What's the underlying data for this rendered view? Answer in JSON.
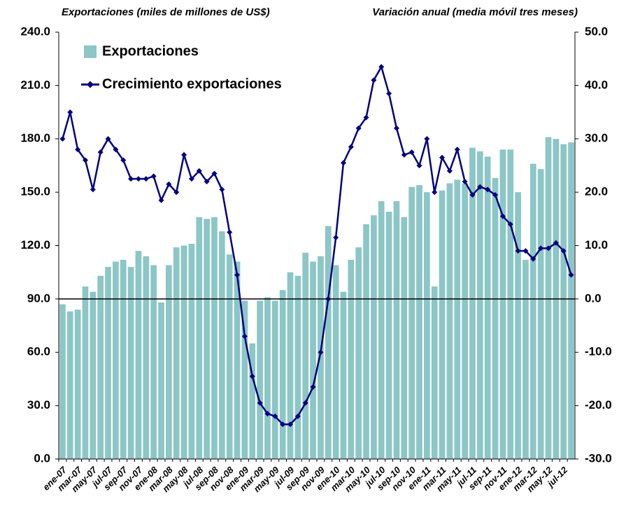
{
  "chart_data": {
    "type": "bar",
    "ylabel": "Exportaciones (miles de millones de US$)",
    "y2label": "Variación anual (media móvil tres meses)",
    "categories": [
      "ene-07",
      null,
      "mar-07",
      null,
      "may-07",
      null,
      "jul-07",
      null,
      "sep-07",
      null,
      "nov-07",
      null,
      "ene-08",
      null,
      "mar-08",
      null,
      "may-08",
      null,
      "jul-08",
      null,
      "sep-08",
      null,
      "nov-08",
      null,
      "ene-09",
      null,
      "mar-09",
      null,
      "may-09",
      null,
      "jul-09",
      null,
      "sep-09",
      null,
      "nov-09",
      null,
      "ene-10",
      null,
      "mar-10",
      null,
      "may-10",
      null,
      "jul-10",
      null,
      "sep-10",
      null,
      "nov-10",
      null,
      "ene-11",
      null,
      "mar-11",
      null,
      "may-11",
      null,
      "jul-11",
      null,
      "sep-11",
      null,
      "nov-11",
      null,
      "ene-12",
      null,
      "mar-12",
      null,
      "may-12",
      null,
      "jul-12",
      null
    ],
    "series": [
      {
        "name": "Exportaciones",
        "type": "bar",
        "color": "#8cc6c6",
        "values": [
          87,
          83,
          84,
          97,
          94,
          103,
          108,
          111,
          112,
          108,
          117,
          114,
          109,
          88,
          109,
          119,
          120,
          121,
          136,
          135,
          136,
          128,
          115,
          111,
          89,
          65,
          89,
          91,
          89,
          95,
          105,
          103,
          116,
          111,
          114,
          131,
          109,
          94,
          112,
          119,
          132,
          137,
          145,
          139,
          145,
          136,
          153,
          154,
          150,
          97,
          151,
          155,
          157,
          155,
          175,
          173,
          170,
          158,
          174,
          174,
          150,
          112,
          166,
          163,
          181,
          180,
          177,
          178
        ]
      },
      {
        "name": "Crecimiento exportaciones",
        "type": "line",
        "axis": "y2",
        "color": "#000080",
        "values": [
          30,
          35,
          28,
          26,
          20.5,
          27.5,
          30,
          28,
          26,
          22.5,
          22.5,
          22.5,
          23,
          18.5,
          21.5,
          20,
          27,
          22.5,
          24,
          22,
          23.5,
          20.5,
          12.5,
          4.5,
          -7,
          -14.5,
          -19.5,
          -21.5,
          -22,
          -23.5,
          -23.5,
          -22,
          -19.5,
          -16.5,
          -10,
          0,
          11.5,
          25.5,
          28.5,
          32,
          34,
          41,
          43.5,
          38.5,
          32,
          27,
          27.5,
          25,
          30,
          20,
          26.5,
          24,
          28,
          22,
          19.5,
          21,
          20.5,
          19.5,
          15.5,
          14,
          9,
          9,
          7.5,
          9.5,
          9.5,
          10.5,
          9,
          4.5
        ]
      }
    ],
    "ylim": [
      0,
      240
    ],
    "yticks": [
      {
        "value": 0,
        "label": "0.0"
      },
      {
        "value": 30,
        "label": "30.0"
      },
      {
        "value": 60,
        "label": "60.0"
      },
      {
        "value": 90,
        "label": "90.0"
      },
      {
        "value": 120,
        "label": "120.0"
      },
      {
        "value": 150,
        "label": "150.0"
      },
      {
        "value": 180,
        "label": "180.0"
      },
      {
        "value": 210,
        "label": "210.0"
      },
      {
        "value": 240,
        "label": "240.0"
      }
    ],
    "y2lim": [
      -30,
      50
    ],
    "y2ticks": [
      {
        "value": -30,
        "label": "-30.0"
      },
      {
        "value": -20,
        "label": "-20.0"
      },
      {
        "value": -10,
        "label": "-10.0"
      },
      {
        "value": 0,
        "label": "0.0"
      },
      {
        "value": 10,
        "label": "10.0"
      },
      {
        "value": 20,
        "label": "20.0"
      },
      {
        "value": 30,
        "label": "30.0"
      },
      {
        "value": 40,
        "label": "40.0"
      },
      {
        "value": 50,
        "label": "50.0"
      }
    ],
    "grid": false,
    "legend": "top-left"
  }
}
